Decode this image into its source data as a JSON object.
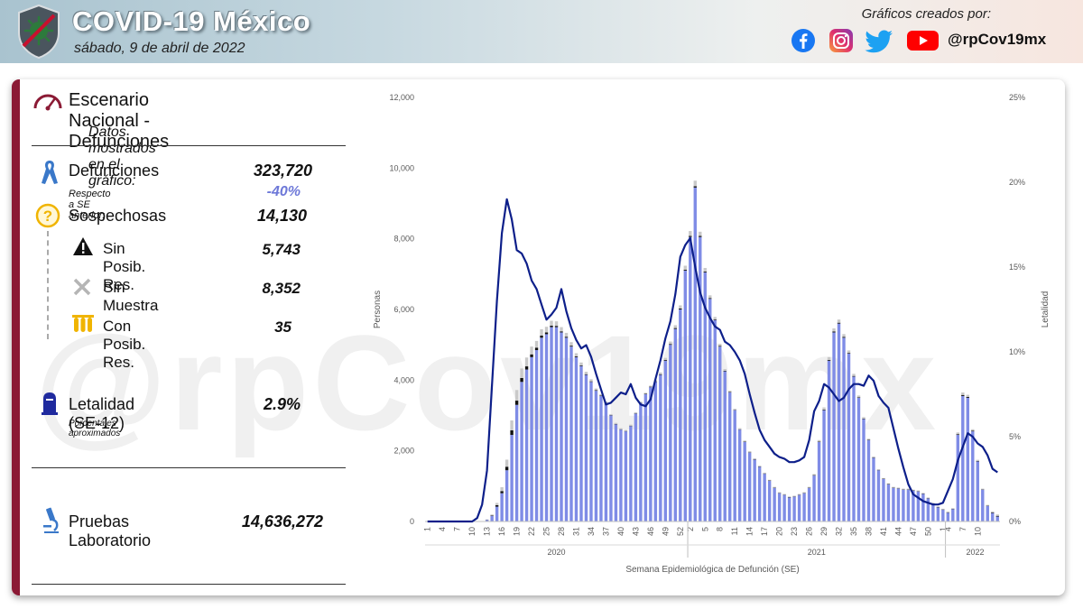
{
  "header": {
    "title": "COVID-19 México",
    "date": "sábado, 9 de abril de 2022",
    "credits_label": "Gráficos creados por:",
    "handle": "@rpCov19mx",
    "social_icons": [
      "facebook-icon",
      "instagram-icon",
      "twitter-icon",
      "youtube-icon"
    ]
  },
  "watermark": "@rpCov19mx",
  "panel": {
    "title": "Escenario Nacional - Defunciones",
    "shown_label": "Datos mostrados en el gráfico:",
    "defunciones": {
      "label": "Defunciones",
      "value": "323,720",
      "note": "Respecto a SE anterior:",
      "change": "-40%"
    },
    "sospechosas": {
      "label": "Sospechosas",
      "value": "14,130"
    },
    "sin_posib": {
      "label": "Sin Posib. Res.",
      "value": "5,743"
    },
    "sin_muestra": {
      "label": "Sin Muestra",
      "value": "8,352"
    },
    "con_posib": {
      "label": "Con Posib. Res.",
      "value": "35"
    },
    "letalidad": {
      "label": "Letalidad (SE-12)",
      "value": "2.9%",
      "note": "Porcentajes aproximados"
    },
    "pruebas": {
      "label": "Pruebas Laboratorio",
      "value": "14,636,272"
    }
  },
  "colors": {
    "accent": "#8b1a35",
    "bars_confirmed": "#7f8ce6",
    "bars_sospechosas": "#c9c9c9",
    "bars_sin_posib": "#111111",
    "line_letalidad": "#0d1f8a",
    "change_text": "#6d78d8"
  },
  "chart_data": {
    "type": "bar",
    "xlabel": "Semana Epidemiológica de Defunción (SE)",
    "ylabel": "Personas",
    "y2label": "Letalidad",
    "ylim": [
      0,
      12000
    ],
    "y2lim": [
      0,
      25
    ],
    "y_ticks": [
      "0",
      "2,000",
      "4,000",
      "6,000",
      "8,000",
      "10,000",
      "12,000"
    ],
    "y2_ticks": [
      "0%",
      "5%",
      "10%",
      "15%",
      "20%",
      "25%"
    ],
    "years": [
      {
        "label": "2020",
        "weeks": 53
      },
      {
        "label": "2021",
        "weeks": 52
      },
      {
        "label": "2022",
        "weeks": 12
      }
    ],
    "x_tick_labels": [
      "1",
      "4",
      "7",
      "10",
      "13",
      "16",
      "19",
      "22",
      "25",
      "28",
      "31",
      "34",
      "37",
      "40",
      "43",
      "46",
      "49",
      "52",
      "2",
      "5",
      "8",
      "11",
      "14",
      "17",
      "20",
      "23",
      "26",
      "29",
      "32",
      "35",
      "38",
      "41",
      "44",
      "47",
      "50",
      "1",
      "4",
      "7",
      "10"
    ],
    "series": [
      {
        "name": "Defunciones",
        "values": [
          0,
          0,
          0,
          0,
          0,
          0,
          0,
          0,
          0,
          0,
          0,
          5,
          45,
          160,
          420,
          800,
          1450,
          2450,
          3300,
          3950,
          4300,
          4650,
          4850,
          5200,
          5300,
          5500,
          5500,
          5350,
          5200,
          4950,
          4650,
          4400,
          4150,
          3950,
          3700,
          3550,
          3350,
          3000,
          2750,
          2600,
          2550,
          2700,
          3050,
          3350,
          3600,
          3800,
          3950,
          4150,
          4550,
          5000,
          5450,
          6000,
          7100,
          8050,
          9450,
          8050,
          7050,
          6300,
          5700,
          4950,
          4250,
          3650,
          3150,
          2600,
          2250,
          1950,
          1750,
          1550,
          1350,
          1150,
          950,
          800,
          750,
          680,
          700,
          750,
          800,
          950,
          1300,
          2250,
          3150,
          4550,
          5350,
          5600,
          5200,
          4750,
          4100,
          3500,
          2900,
          2300,
          1800,
          1450,
          1200,
          1050,
          950,
          930,
          900,
          900,
          870,
          850,
          780,
          650,
          500,
          400,
          330,
          250,
          350,
          2450,
          3550,
          3500,
          2550,
          1700,
          900,
          440,
          240,
          140
        ]
      },
      {
        "name": "Sospechosas",
        "values": [
          0,
          0,
          0,
          0,
          0,
          0,
          0,
          0,
          0,
          0,
          0,
          0,
          8,
          25,
          65,
          110,
          200,
          280,
          300,
          270,
          250,
          220,
          190,
          180,
          160,
          140,
          130,
          120,
          110,
          100,
          90,
          80,
          70,
          60,
          50,
          40,
          30,
          30,
          30,
          30,
          30,
          30,
          30,
          30,
          30,
          30,
          40,
          50,
          60,
          70,
          80,
          90,
          110,
          140,
          160,
          120,
          100,
          80,
          70,
          60,
          50,
          40,
          30,
          30,
          30,
          30,
          30,
          20,
          20,
          20,
          20,
          20,
          20,
          20,
          20,
          20,
          20,
          20,
          30,
          40,
          60,
          80,
          90,
          90,
          80,
          70,
          60,
          50,
          40,
          30,
          30,
          20,
          20,
          20,
          20,
          20,
          20,
          20,
          20,
          20,
          20,
          20,
          20,
          20,
          20,
          20,
          20,
          50,
          70,
          60,
          40,
          30,
          20,
          20,
          30,
          40
        ]
      },
      {
        "name": "Sin Posib. Res.",
        "values": [
          0,
          0,
          0,
          0,
          0,
          0,
          0,
          0,
          0,
          0,
          0,
          0,
          5,
          15,
          40,
          60,
          100,
          130,
          120,
          110,
          90,
          80,
          70,
          60,
          50,
          40,
          35,
          30,
          28,
          25,
          22,
          20,
          18,
          16,
          14,
          12,
          10,
          10,
          10,
          10,
          10,
          10,
          10,
          10,
          12,
          14,
          16,
          18,
          20,
          22,
          24,
          26,
          28,
          30,
          35,
          30,
          25,
          20,
          18,
          16,
          14,
          12,
          10,
          10,
          10,
          10,
          10,
          10,
          10,
          10,
          10,
          10,
          10,
          10,
          10,
          10,
          10,
          10,
          12,
          14,
          18,
          22,
          25,
          25,
          22,
          20,
          18,
          16,
          14,
          12,
          10,
          10,
          10,
          10,
          10,
          10,
          10,
          10,
          10,
          10,
          10,
          10,
          10,
          10,
          10,
          10,
          10,
          20,
          30,
          25,
          20,
          15,
          10,
          10,
          15,
          20
        ]
      },
      {
        "name": "Letalidad",
        "axis": "right",
        "values": [
          0,
          0,
          0,
          0,
          0,
          0,
          0,
          0,
          0,
          0,
          0.2,
          1,
          3,
          8,
          13,
          17,
          19,
          17.8,
          16,
          15.8,
          15.2,
          14.2,
          13.7,
          12.8,
          11.9,
          12.2,
          12.6,
          13.7,
          12.4,
          11.4,
          10.7,
          10.2,
          10.4,
          9.7,
          8.7,
          7.8,
          6.9,
          7,
          7.3,
          7.6,
          7.5,
          8.1,
          7.3,
          6.9,
          6.8,
          7.2,
          8.4,
          9.5,
          10.8,
          11.8,
          13.4,
          15.6,
          16.3,
          16.7,
          15,
          13.5,
          12.6,
          12,
          11.5,
          11.3,
          10.6,
          10.4,
          10,
          9.5,
          8.7,
          7.5,
          6.4,
          5.4,
          4.8,
          4.4,
          4,
          3.8,
          3.7,
          3.5,
          3.5,
          3.6,
          3.8,
          4.8,
          6.5,
          7.1,
          8.1,
          7.9,
          7.5,
          7.1,
          7.3,
          7.8,
          8.1,
          8.1,
          8.0,
          8.6,
          8.3,
          7.4,
          7.0,
          6.7,
          5.5,
          4.3,
          3.2,
          2.2,
          1.6,
          1.4,
          1.2,
          1.1,
          1,
          1,
          1.1,
          1.8,
          2.5,
          3.6,
          4.4,
          5.2,
          5.0,
          4.6,
          4.4,
          3.9,
          3.1,
          2.9
        ]
      }
    ]
  }
}
